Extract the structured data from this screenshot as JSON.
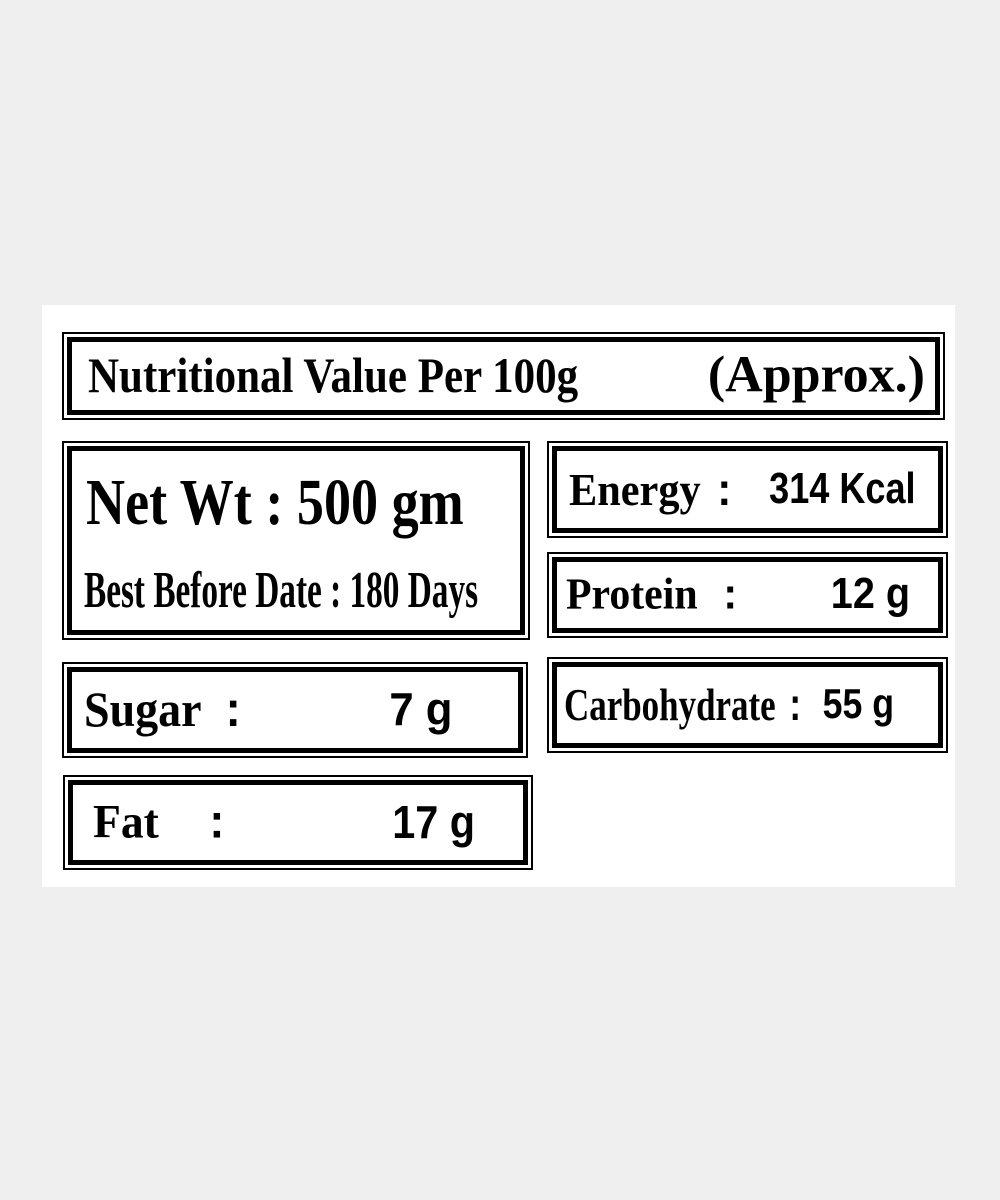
{
  "page": {
    "background_color": "#efefef",
    "panel_background_color": "#ffffff",
    "border_color": "#000000",
    "text_color": "#000000"
  },
  "title": {
    "main": "Nutritional Value Per 100g",
    "suffix": "(Approx.)"
  },
  "net_wt": {
    "line1": "Net Wt : 500 gm",
    "line2": "Best Before Date : 180 Days"
  },
  "nutrients": {
    "energy": {
      "name": "Energy",
      "colon": ":",
      "value": "314 Kcal"
    },
    "protein": {
      "name": "Protein",
      "colon": ":",
      "value": "12 g"
    },
    "carbohydrate": {
      "name": "Carbohydrate",
      "colon": ":",
      "value": "55 g"
    },
    "sugar": {
      "name": "Sugar",
      "colon": ":",
      "value": "7 g"
    },
    "fat": {
      "name": "Fat",
      "colon": ":",
      "value": "17 g"
    }
  }
}
